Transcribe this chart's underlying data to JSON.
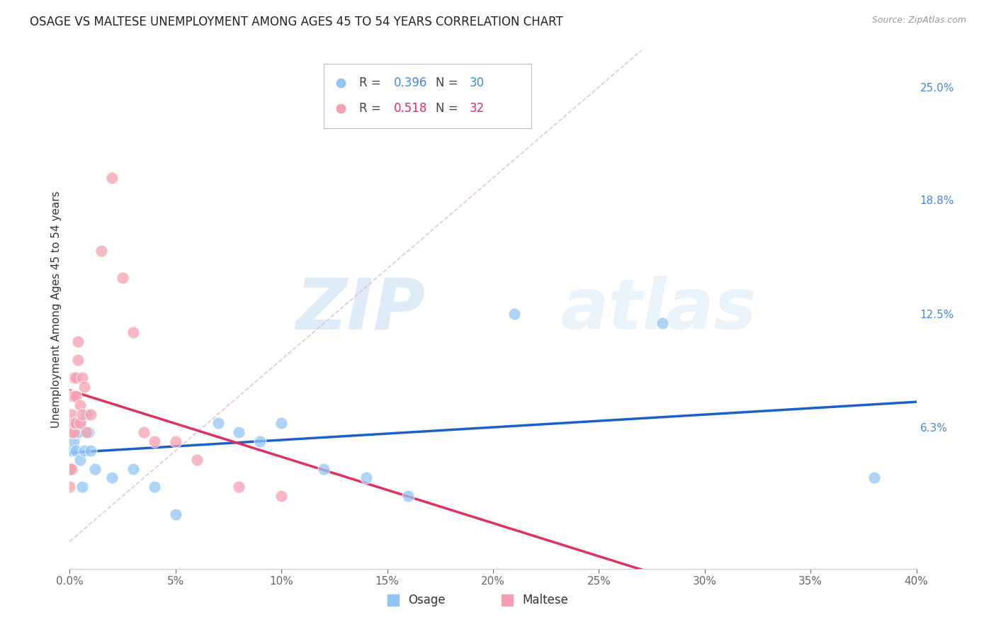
{
  "title": "OSAGE VS MALTESE UNEMPLOYMENT AMONG AGES 45 TO 54 YEARS CORRELATION CHART",
  "source": "Source: ZipAtlas.com",
  "ylabel": "Unemployment Among Ages 45 to 54 years",
  "xlim": [
    0.0,
    0.4
  ],
  "ylim": [
    -0.015,
    0.27
  ],
  "xticks": [
    0.0,
    0.05,
    0.1,
    0.15,
    0.2,
    0.25,
    0.3,
    0.35,
    0.4
  ],
  "yticks_right": [
    0.0,
    0.063,
    0.125,
    0.188,
    0.25
  ],
  "ytick_right_labels": [
    "",
    "6.3%",
    "12.5%",
    "18.8%",
    "25.0%"
  ],
  "osage_color": "#92c5f5",
  "maltese_color": "#f5a0b0",
  "osage_line_color": "#1a5fcc",
  "maltese_line_color": "#e03060",
  "r_osage": "0.396",
  "n_osage": "30",
  "r_maltese": "0.518",
  "n_maltese": "32",
  "watermark_zip": "ZIP",
  "watermark_atlas": "atlas",
  "background_color": "#ffffff",
  "grid_color": "#dddddd",
  "osage_x": [
    0.0,
    0.001,
    0.001,
    0.002,
    0.002,
    0.003,
    0.003,
    0.004,
    0.005,
    0.005,
    0.006,
    0.007,
    0.008,
    0.009,
    0.01,
    0.012,
    0.02,
    0.03,
    0.04,
    0.05,
    0.07,
    0.08,
    0.09,
    0.1,
    0.12,
    0.14,
    0.16,
    0.21,
    0.28,
    0.38
  ],
  "osage_y": [
    0.04,
    0.05,
    0.06,
    0.055,
    0.065,
    0.05,
    0.06,
    0.06,
    0.065,
    0.045,
    0.03,
    0.05,
    0.07,
    0.06,
    0.05,
    0.04,
    0.035,
    0.04,
    0.03,
    0.015,
    0.065,
    0.06,
    0.055,
    0.065,
    0.04,
    0.035,
    0.025,
    0.125,
    0.12,
    0.035
  ],
  "maltese_x": [
    0.0,
    0.0,
    0.001,
    0.001,
    0.001,
    0.001,
    0.002,
    0.002,
    0.002,
    0.002,
    0.003,
    0.003,
    0.003,
    0.004,
    0.004,
    0.005,
    0.005,
    0.006,
    0.006,
    0.007,
    0.008,
    0.01,
    0.015,
    0.02,
    0.025,
    0.03,
    0.035,
    0.04,
    0.05,
    0.06,
    0.08,
    0.1
  ],
  "maltese_y": [
    0.03,
    0.04,
    0.04,
    0.06,
    0.07,
    0.08,
    0.06,
    0.065,
    0.08,
    0.09,
    0.065,
    0.08,
    0.09,
    0.1,
    0.11,
    0.065,
    0.075,
    0.07,
    0.09,
    0.085,
    0.06,
    0.07,
    0.16,
    0.2,
    0.145,
    0.115,
    0.06,
    0.055,
    0.055,
    0.045,
    0.03,
    0.025
  ],
  "diag_color": "#ddbbbb",
  "title_fontsize": 12,
  "axis_label_fontsize": 11,
  "tick_fontsize": 11,
  "right_tick_color": "#4488dd"
}
